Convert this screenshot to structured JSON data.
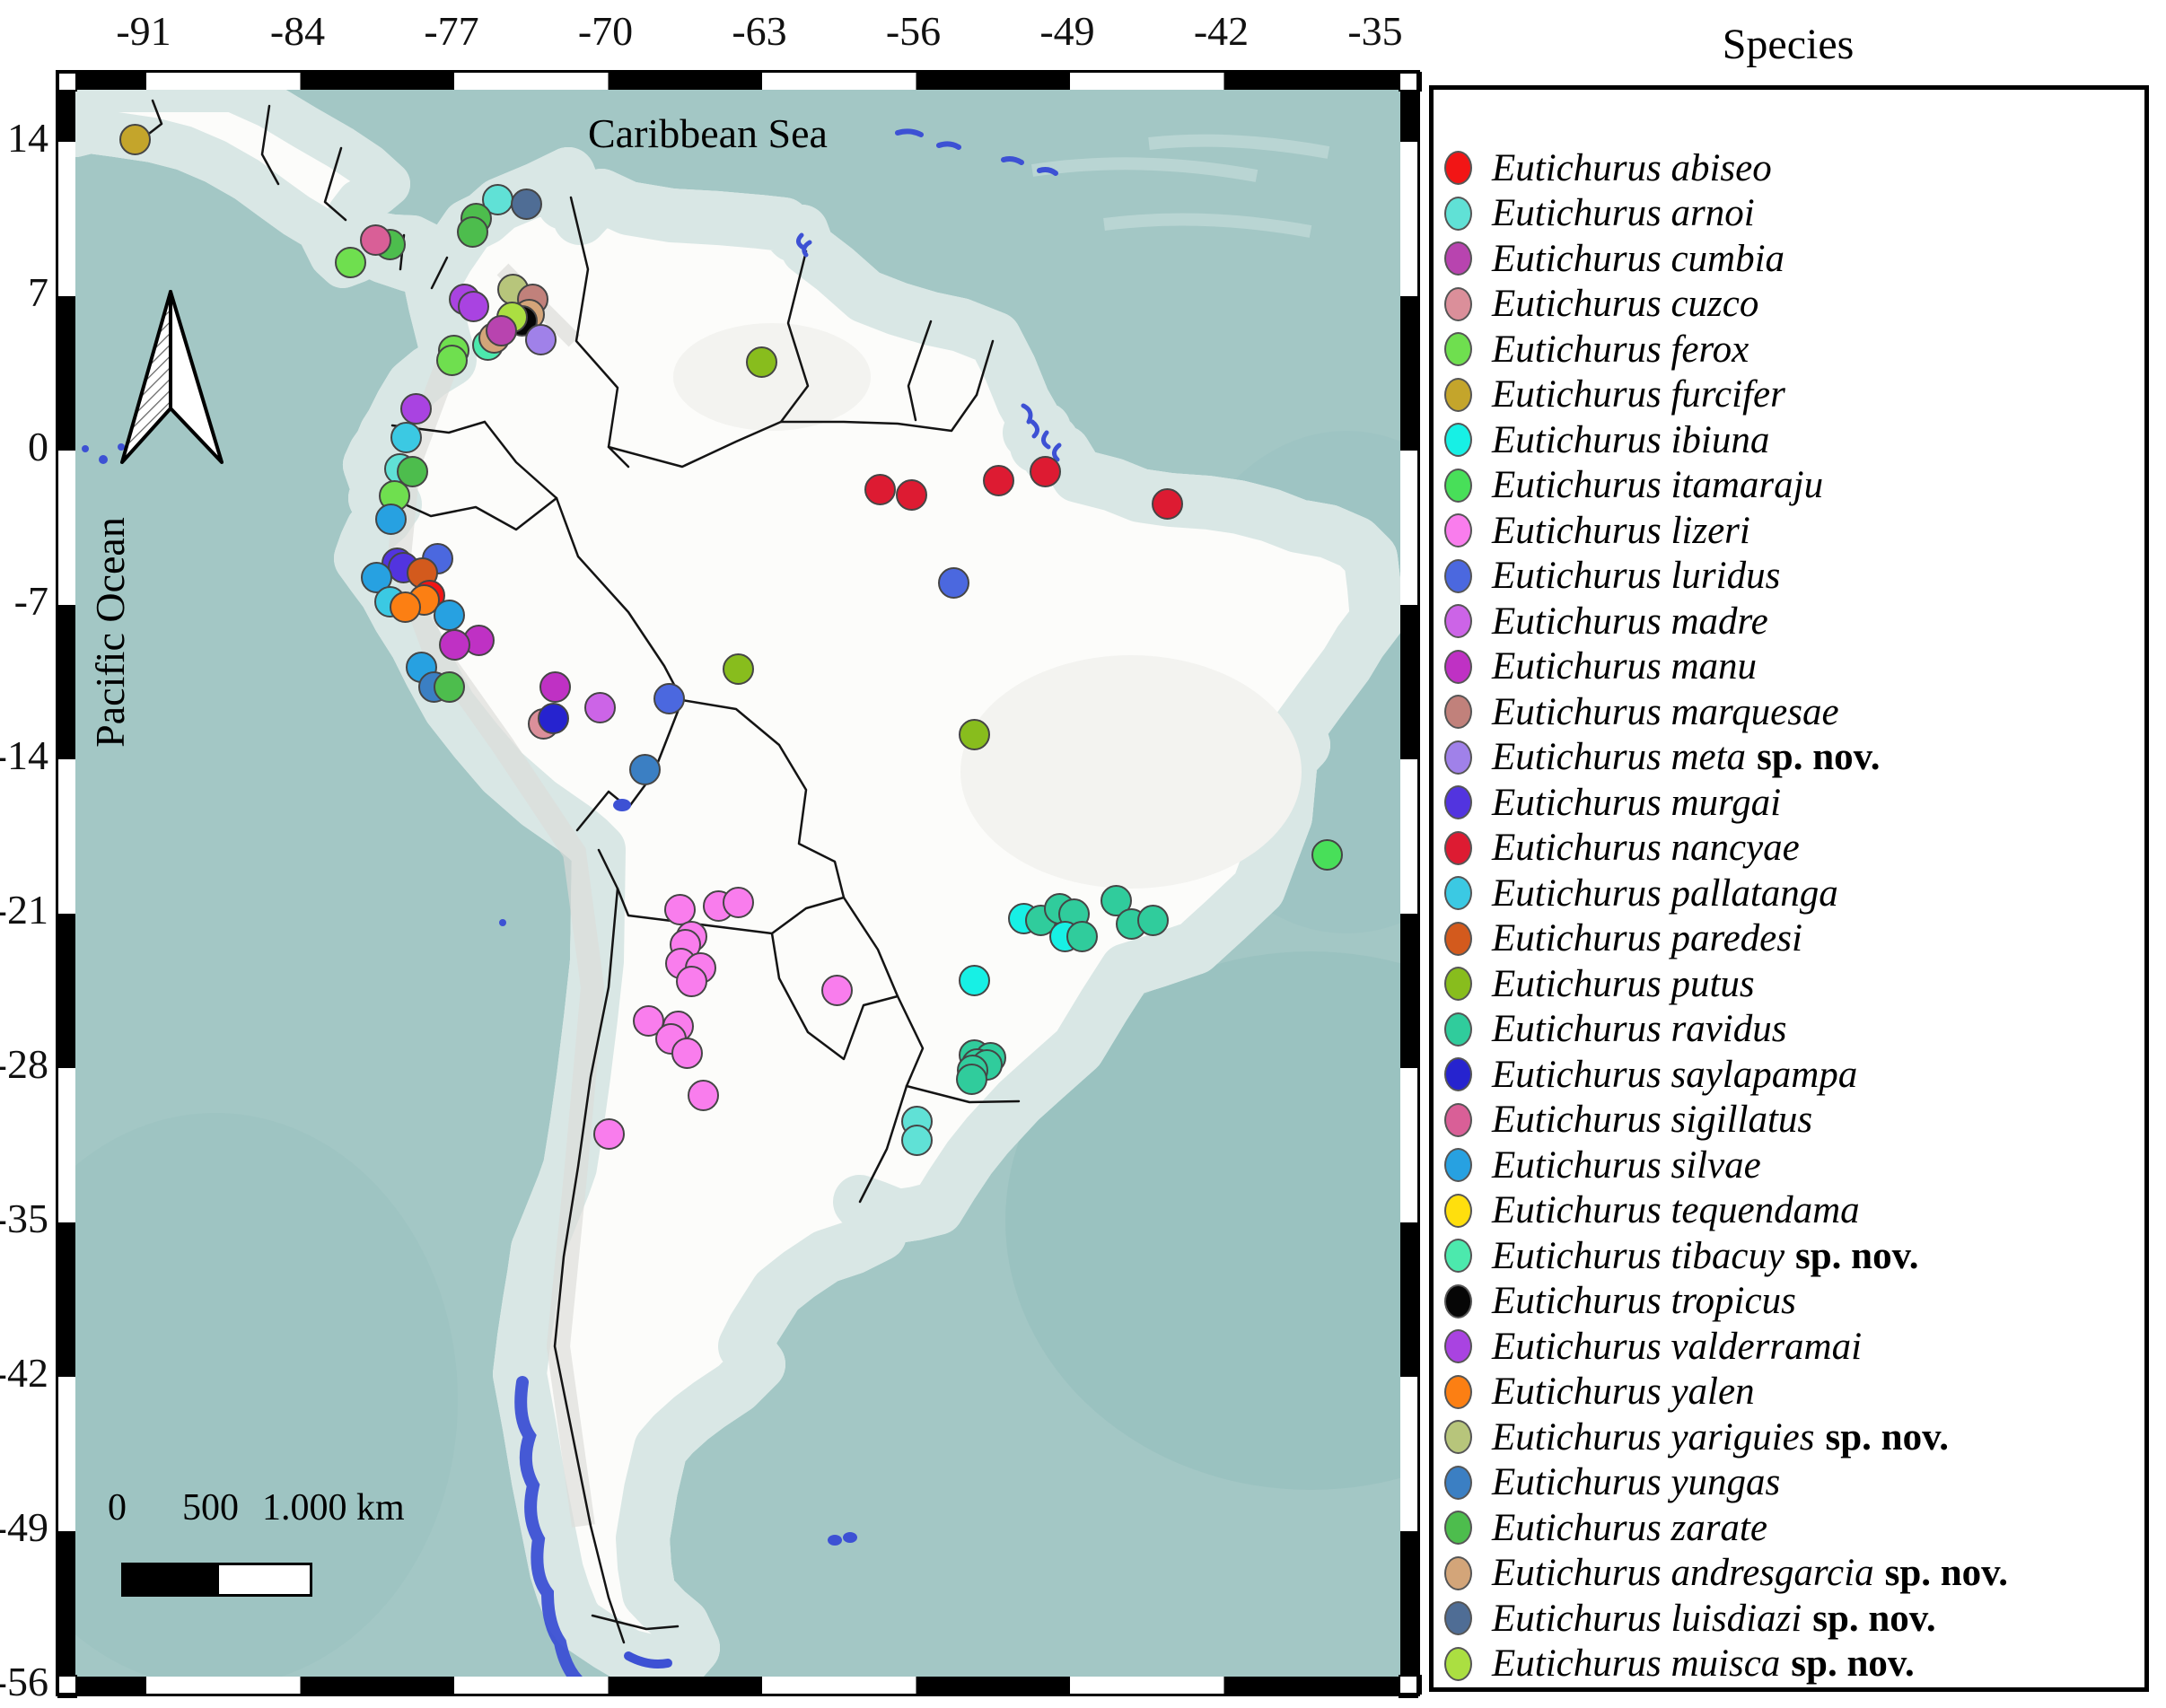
{
  "legend": {
    "title": "Species",
    "genus_prefix": "Eutichurus",
    "species": [
      {
        "key": "abiseo",
        "name": "Eutichurus abiseo",
        "suffix": "",
        "color": "#F21515"
      },
      {
        "key": "arnoi",
        "name": "Eutichurus arnoi",
        "suffix": "",
        "color": "#60E1D6"
      },
      {
        "key": "cumbia",
        "name": "Eutichurus cumbia",
        "suffix": "",
        "color": "#B844AF"
      },
      {
        "key": "cuzco",
        "name": "Eutichurus cuzco",
        "suffix": "",
        "color": "#DB8F9A"
      },
      {
        "key": "ferox",
        "name": "Eutichurus ferox",
        "suffix": "",
        "color": "#6FDF4F"
      },
      {
        "key": "furcifer",
        "name": "Eutichurus furcifer",
        "suffix": "",
        "color": "#C4A52B"
      },
      {
        "key": "ibiuna",
        "name": "Eutichurus ibiuna",
        "suffix": "",
        "color": "#17F0E5"
      },
      {
        "key": "itamaraju",
        "name": "Eutichurus itamaraju",
        "suffix": "",
        "color": "#48DF59"
      },
      {
        "key": "lizeri",
        "name": "Eutichurus lizeri",
        "suffix": "",
        "color": "#F97DED"
      },
      {
        "key": "luridus",
        "name": "Eutichurus luridus",
        "suffix": "",
        "color": "#4B68DF"
      },
      {
        "key": "madre",
        "name": "Eutichurus madre",
        "suffix": "",
        "color": "#CC64E7"
      },
      {
        "key": "manu",
        "name": "Eutichurus manu",
        "suffix": "",
        "color": "#BF31C4"
      },
      {
        "key": "marquesae",
        "name": "Eutichurus marquesae",
        "suffix": "",
        "color": "#C1817B"
      },
      {
        "key": "meta",
        "name": "Eutichurus meta",
        "suffix": "sp. nov.",
        "color": "#A081E9"
      },
      {
        "key": "murgai",
        "name": "Eutichurus murgai",
        "suffix": "",
        "color": "#5234DF"
      },
      {
        "key": "nancyae",
        "name": "Eutichurus nancyae",
        "suffix": "",
        "color": "#DD1B32"
      },
      {
        "key": "pallatanga",
        "name": "Eutichurus pallatanga",
        "suffix": "",
        "color": "#3BC9E3"
      },
      {
        "key": "paredesi",
        "name": "Eutichurus paredesi",
        "suffix": "",
        "color": "#D35A1D"
      },
      {
        "key": "putus",
        "name": "Eutichurus putus",
        "suffix": "",
        "color": "#88BD1D"
      },
      {
        "key": "ravidus",
        "name": "Eutichurus ravidus",
        "suffix": "",
        "color": "#30CC9C"
      },
      {
        "key": "saylapampa",
        "name": "Eutichurus saylapampa",
        "suffix": "",
        "color": "#2623CF"
      },
      {
        "key": "sigillatus",
        "name": "Eutichurus sigillatus",
        "suffix": "",
        "color": "#D95F97"
      },
      {
        "key": "silvae",
        "name": "Eutichurus silvae",
        "suffix": "",
        "color": "#27A1E1"
      },
      {
        "key": "tequendama",
        "name": "Eutichurus tequendama",
        "suffix": "",
        "color": "#FFDF0D"
      },
      {
        "key": "tibacuy",
        "name": "Eutichurus tibacuy",
        "suffix": "sp. nov.",
        "color": "#4CE9AD"
      },
      {
        "key": "tropicus",
        "name": "Eutichurus tropicus",
        "suffix": "",
        "color": "#060606"
      },
      {
        "key": "valderramai",
        "name": "Eutichurus valderramai",
        "suffix": "",
        "color": "#A943E1"
      },
      {
        "key": "yalen",
        "name": "Eutichurus yalen",
        "suffix": "",
        "color": "#FC7F13"
      },
      {
        "key": "yariguies",
        "name": "Eutichurus yariguies",
        "suffix": "sp. nov.",
        "color": "#B7C57B"
      },
      {
        "key": "yungas",
        "name": "Eutichurus yungas",
        "suffix": "",
        "color": "#3B7FC3"
      },
      {
        "key": "zarate",
        "name": "Eutichurus zarate",
        "suffix": "",
        "color": "#4DBD4D"
      },
      {
        "key": "andresgarcia",
        "name": "Eutichurus andresgarcia",
        "suffix": "sp. nov.",
        "color": "#D3A579"
      },
      {
        "key": "luisdiazi",
        "name": "Eutichurus luisdiazi",
        "suffix": "sp. nov.",
        "color": "#4F6D95"
      },
      {
        "key": "muisca",
        "name": "Eutichurus muisca",
        "suffix": "sp. nov.",
        "color": "#ABDF41"
      }
    ]
  },
  "map": {
    "labels": {
      "caribbean": "Caribbean Sea",
      "pacific": "Pacific Ocean"
    },
    "scalebar": {
      "zero": "0",
      "mid": "500",
      "end": "1.000 km"
    }
  },
  "chart_data": {
    "type": "scatter",
    "title": "Species",
    "x_axis_ticks": [
      "-91",
      "-84",
      "-77",
      "-70",
      "-63",
      "-56",
      "-49",
      "-42",
      "-35"
    ],
    "y_axis_ticks": [
      "14",
      "7",
      "0",
      "-7",
      "-14",
      "-21",
      "-28",
      "-35",
      "-42",
      "-49",
      "-56"
    ],
    "xlim": [
      -94.8,
      -33.1
    ],
    "ylim": [
      -56.7,
      16.1
    ],
    "legend_position": "right",
    "occurrences": [
      [
        "furcifer",
        150,
        155
      ],
      [
        "zarate",
        434,
        272
      ],
      [
        "sigillatus",
        418,
        267
      ],
      [
        "ferox",
        390,
        292
      ],
      [
        "arnoi",
        554,
        222
      ],
      [
        "luisdiazi",
        586,
        227
      ],
      [
        "zarate",
        530,
        243
      ],
      [
        "zarate",
        526,
        258
      ],
      [
        "yariguies",
        571,
        322
      ],
      [
        "marquesae",
        593,
        333
      ],
      [
        "valderramai",
        517,
        333
      ],
      [
        "valderramai",
        527,
        341
      ],
      [
        "andresgarcia",
        589,
        350
      ],
      [
        "tropicus",
        581,
        357
      ],
      [
        "muisca",
        570,
        353
      ],
      [
        "tibacuy",
        543,
        384
      ],
      [
        "andresgarcia",
        550,
        376
      ],
      [
        "cumbia",
        558,
        368
      ],
      [
        "meta",
        602,
        378
      ],
      [
        "ferox",
        505,
        390
      ],
      [
        "ferox",
        503,
        401
      ],
      [
        "valderramai",
        463,
        455
      ],
      [
        "pallatanga",
        452,
        487
      ],
      [
        "arnoi",
        445,
        522
      ],
      [
        "zarate",
        459,
        525
      ],
      [
        "ferox",
        439,
        552
      ],
      [
        "silvae",
        435,
        578
      ],
      [
        "luridus",
        487,
        622
      ],
      [
        "murgai",
        442,
        627
      ],
      [
        "murgai",
        449,
        632
      ],
      [
        "paredesi",
        470,
        638
      ],
      [
        "silvae",
        419,
        643
      ],
      [
        "pallatanga",
        434,
        670
      ],
      [
        "abiseo",
        478,
        663
      ],
      [
        "yalen",
        472,
        668
      ],
      [
        "yalen",
        451,
        676
      ],
      [
        "silvae",
        500,
        685
      ],
      [
        "manu",
        533,
        713
      ],
      [
        "manu",
        506,
        718
      ],
      [
        "silvae",
        469,
        743
      ],
      [
        "yungas",
        483,
        765
      ],
      [
        "zarate",
        500,
        765
      ],
      [
        "putus",
        822,
        745
      ],
      [
        "putus",
        848,
        403
      ],
      [
        "putus",
        1085,
        818
      ],
      [
        "manu",
        618,
        765
      ],
      [
        "madre",
        668,
        788
      ],
      [
        "cuzco",
        605,
        806
      ],
      [
        "saylapampa",
        616,
        800
      ],
      [
        "luridus",
        745,
        778
      ],
      [
        "yungas",
        718,
        857
      ],
      [
        "nancyae",
        980,
        545
      ],
      [
        "nancyae",
        1015,
        551
      ],
      [
        "nancyae",
        1112,
        535
      ],
      [
        "nancyae",
        1164,
        525
      ],
      [
        "nancyae",
        1300,
        561
      ],
      [
        "luridus",
        1062,
        649
      ],
      [
        "itamaraju",
        1478,
        952
      ],
      [
        "ibiuna",
        1140,
        1023
      ],
      [
        "ravidus",
        1159,
        1025
      ],
      [
        "ravidus",
        1180,
        1012
      ],
      [
        "ravidus",
        1196,
        1018
      ],
      [
        "ravidus",
        1243,
        1003
      ],
      [
        "ravidus",
        1260,
        1029
      ],
      [
        "ravidus",
        1284,
        1025
      ],
      [
        "ibiuna",
        1186,
        1043
      ],
      [
        "ravidus",
        1205,
        1043
      ],
      [
        "ibiuna",
        1085,
        1092
      ],
      [
        "ravidus",
        1085,
        1175
      ],
      [
        "ravidus",
        1103,
        1178
      ],
      [
        "ravidus",
        1088,
        1185
      ],
      [
        "ravidus",
        1099,
        1186
      ],
      [
        "ravidus",
        1083,
        1192
      ],
      [
        "ravidus",
        1082,
        1202
      ],
      [
        "arnoi",
        1021,
        1249
      ],
      [
        "arnoi",
        1021,
        1270
      ],
      [
        "lizeri",
        757,
        1013
      ],
      [
        "lizeri",
        800,
        1009
      ],
      [
        "lizeri",
        822,
        1005
      ],
      [
        "lizeri",
        770,
        1043
      ],
      [
        "lizeri",
        763,
        1052
      ],
      [
        "lizeri",
        758,
        1073
      ],
      [
        "lizeri",
        780,
        1078
      ],
      [
        "lizeri",
        770,
        1093
      ],
      [
        "lizeri",
        722,
        1137
      ],
      [
        "lizeri",
        755,
        1143
      ],
      [
        "lizeri",
        747,
        1157
      ],
      [
        "lizeri",
        765,
        1173
      ],
      [
        "lizeri",
        932,
        1103
      ],
      [
        "lizeri",
        783,
        1220
      ],
      [
        "lizeri",
        678,
        1263
      ]
    ]
  }
}
